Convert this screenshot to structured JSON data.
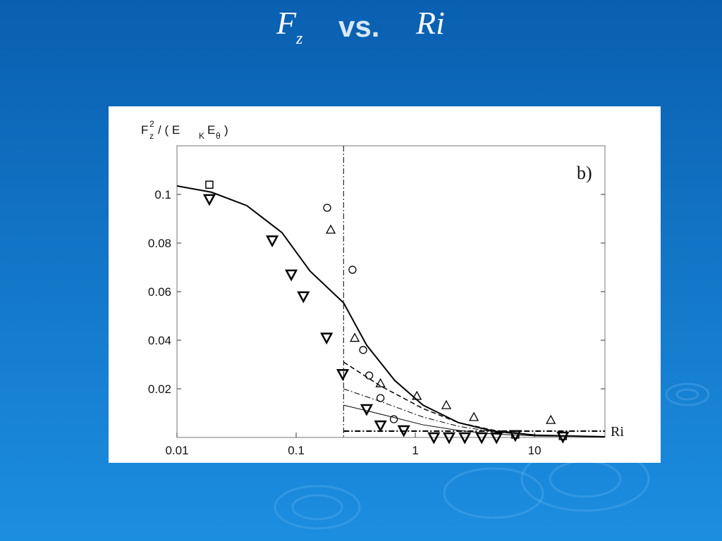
{
  "slide": {
    "title": {
      "symbol": "F",
      "subscript": "z",
      "connector": "vs.",
      "variable": "Ri"
    }
  },
  "chart_data": {
    "type": "scatter",
    "log_x": true,
    "ylabel_parts": [
      "F",
      "2",
      "z",
      "/ ( E",
      "K",
      "E",
      "θ",
      ")"
    ],
    "xlabel": "Ri",
    "annotation": "b)",
    "xlim": [
      0.01,
      39
    ],
    "ylim": [
      0,
      0.12
    ],
    "xticks": [
      0.01,
      0.1,
      1,
      10
    ],
    "yticks": [
      0.02,
      0.04,
      0.06,
      0.08,
      0.1
    ],
    "vline": 0.25,
    "series": [
      {
        "kind": "line",
        "style": "solid-thick",
        "color": "#000",
        "x": [
          0.01,
          0.0195,
          0.0385,
          0.076,
          0.131,
          0.25,
          0.39,
          0.67,
          1.16,
          2.3,
          4.5,
          10.4,
          39
        ],
        "y": [
          0.1035,
          0.1009,
          0.0954,
          0.0843,
          0.0684,
          0.0554,
          0.038,
          0.0235,
          0.0133,
          0.0061,
          0.0026,
          0.0009,
          0.0003
        ]
      },
      {
        "kind": "line",
        "style": "dashed",
        "color": "#000",
        "x": [
          0.25,
          0.51,
          1.16,
          2.3,
          4.5,
          10.4,
          39
        ],
        "y": [
          0.031,
          0.0212,
          0.0119,
          0.0061,
          0.003,
          0.0009,
          0.0003
        ]
      },
      {
        "kind": "line",
        "style": "dashdot",
        "color": "#000",
        "x": [
          0.25,
          0.51,
          1.16,
          2.3,
          4.5,
          10.4,
          39
        ],
        "y": [
          0.02,
          0.0148,
          0.0084,
          0.0046,
          0.0023,
          0.0009,
          0.0003
        ]
      },
      {
        "kind": "line",
        "style": "solid-thin",
        "color": "#000",
        "x": [
          0.25,
          0.51,
          1.16,
          2.3,
          4.5,
          10.4,
          39
        ],
        "y": [
          0.0133,
          0.0096,
          0.0052,
          0.0029,
          0.0014,
          0.0006,
          0.0003
        ]
      },
      {
        "kind": "line",
        "style": "dashdot-thick",
        "color": "#000",
        "x": [
          0.25,
          39
        ],
        "y": [
          0.0026,
          0.0026
        ]
      },
      {
        "kind": "marker",
        "shape": "triangle-down",
        "color": "#000",
        "x": [
          0.0187,
          0.063,
          0.091,
          0.115,
          0.18,
          0.246,
          0.39,
          0.51,
          0.8,
          1.43,
          1.92,
          2.6,
          3.6,
          4.8,
          6.9,
          17.3
        ],
        "y": [
          0.098,
          0.081,
          0.067,
          0.058,
          0.041,
          0.026,
          0.0116,
          0.0049,
          0.0029,
          0.0,
          0.0,
          0.0,
          0.0,
          0.0,
          0.0009,
          0.0003
        ]
      },
      {
        "kind": "marker",
        "shape": "circle",
        "color": "#000",
        "x": [
          0.182,
          0.297,
          0.365,
          0.41,
          0.51,
          0.66
        ],
        "y": [
          0.0945,
          0.069,
          0.036,
          0.0255,
          0.0162,
          0.0075
        ]
      },
      {
        "kind": "marker",
        "shape": "triangle-up",
        "color": "#000",
        "x": [
          0.195,
          0.31,
          0.51,
          1.03,
          1.82,
          3.1,
          13.7
        ],
        "y": [
          0.0855,
          0.041,
          0.0223,
          0.0171,
          0.0133,
          0.0084,
          0.0072
        ]
      },
      {
        "kind": "marker",
        "shape": "square",
        "color": "#000",
        "x": [
          0.0187,
          6.9,
          17.3
        ],
        "y": [
          0.104,
          0.0012,
          0.0006
        ]
      }
    ]
  }
}
